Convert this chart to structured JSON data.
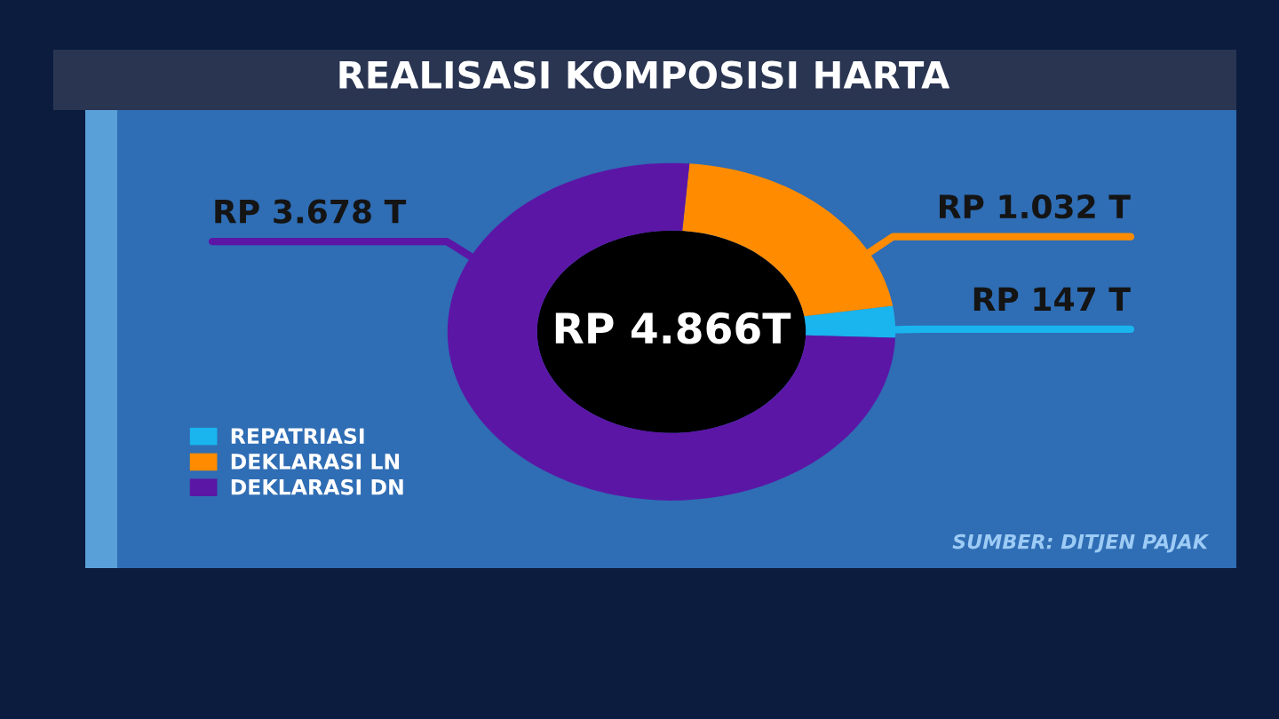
{
  "chart_data": {
    "type": "donut",
    "title": "REALISASI KOMPOSISI HARTA",
    "categories": [
      "REPATRIASI",
      "DEKLARASI LN",
      "DEKLARASI DN"
    ],
    "values": [
      147,
      1032,
      3678
    ],
    "value_labels": [
      "RP 147 T",
      "RP 1.032 T",
      "RP 3.678 T"
    ],
    "colors": [
      "#1ab4ee",
      "#ff8c00",
      "#5c16a6"
    ],
    "legend": "bottom left",
    "annotations": [
      "RP 4.866T",
      "SUMBER: DITJEN PAJAK"
    ]
  }
}
